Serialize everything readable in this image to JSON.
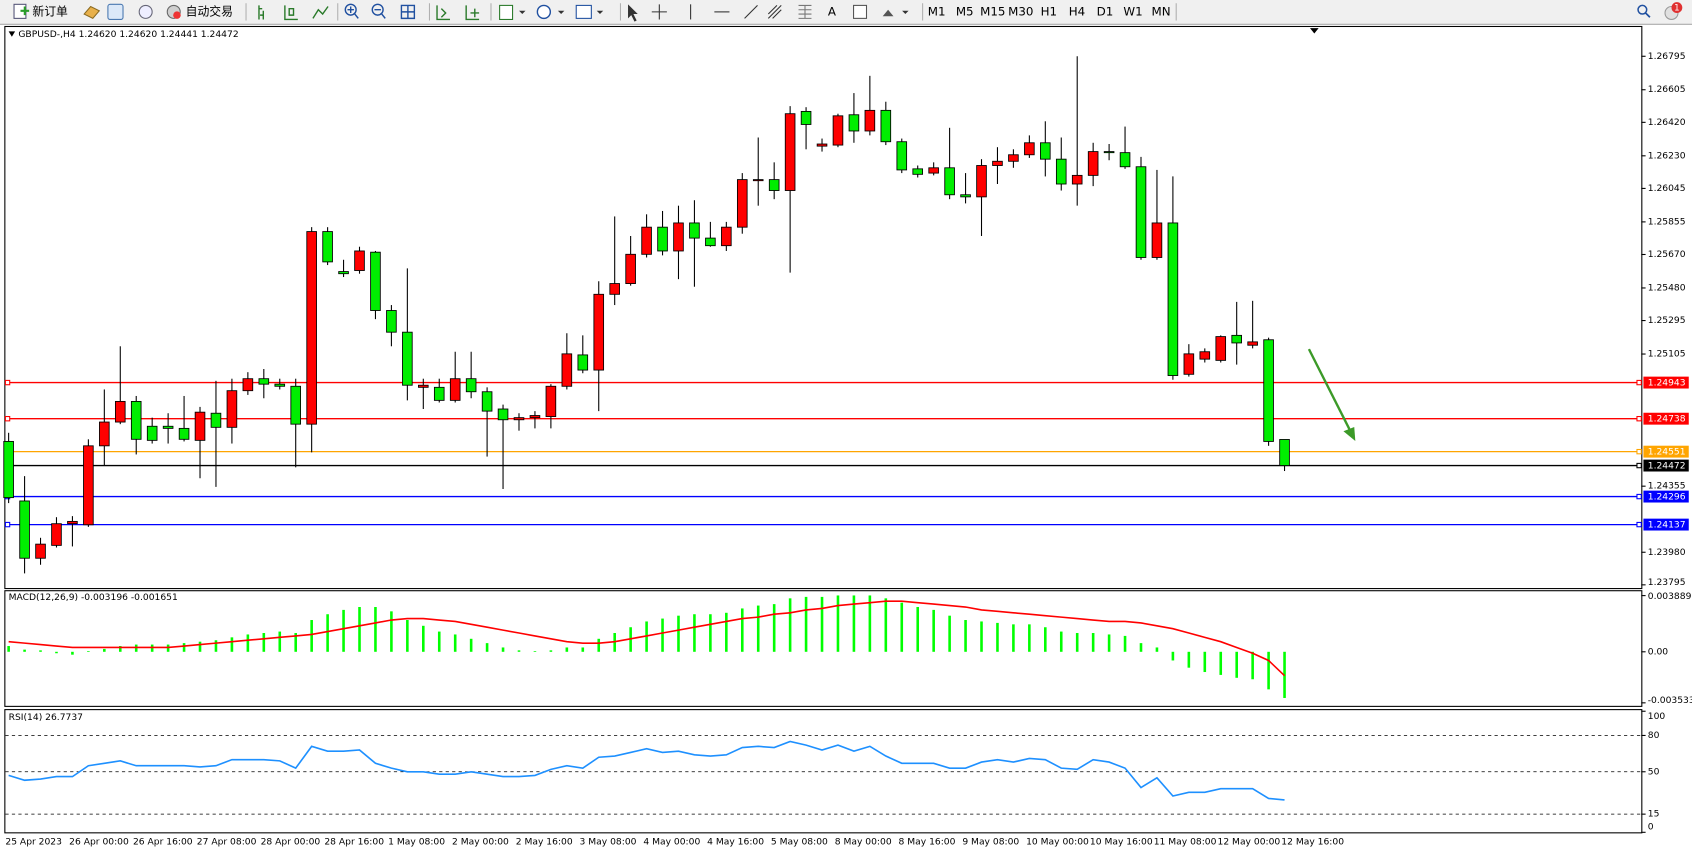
{
  "toolbar": {
    "new_order": "新订单",
    "auto_trading": "自动交易",
    "text_tool": "A",
    "notifications": "1",
    "timeframes": [
      "M1",
      "M5",
      "M15",
      "M30",
      "H1",
      "H4",
      "D1",
      "W1",
      "MN"
    ]
  },
  "chart_data": [
    {
      "type": "candlestick",
      "title": "GBPUSD-,H4  1.24620 1.24620 1.24441 1.24472",
      "up_color": "#ff0000",
      "down_color": "#00ee00",
      "categories": [
        "25 Apr 2023",
        null,
        null,
        null,
        "26 Apr 00:00",
        null,
        null,
        null,
        "26 Apr 16:00",
        null,
        null,
        null,
        "27 Apr 08:00",
        null,
        null,
        null,
        "28 Apr 00:00",
        null,
        null,
        null,
        "28 Apr 16:00",
        null,
        null,
        null,
        "1 May 08:00",
        null,
        null,
        null,
        "2 May 00:00",
        null,
        null,
        null,
        "2 May 16:00",
        null,
        null,
        null,
        "3 May 08:00",
        null,
        null,
        null,
        "4 May 00:00",
        null,
        null,
        null,
        "4 May 16:00",
        null,
        null,
        null,
        "5 May 08:00",
        null,
        null,
        null,
        "8 May 00:00",
        null,
        null,
        null,
        "8 May 16:00",
        null,
        null,
        null,
        "9 May 08:00",
        null,
        null,
        null,
        "10 May 00:00",
        null,
        null,
        null,
        "10 May 16:00",
        null,
        null,
        null,
        "11 May 08:00",
        null,
        null,
        null,
        "12 May 00:00",
        null,
        null,
        null,
        "12 May 16:00"
      ],
      "open": [
        1.24609,
        1.24271,
        1.23946,
        1.24019,
        1.24142,
        1.24136,
        1.24584,
        1.24719,
        1.24836,
        1.24695,
        1.24695,
        1.24683,
        1.24615,
        1.24769,
        1.24689,
        1.24897,
        1.24965,
        1.24934,
        1.24922,
        1.24707,
        1.258,
        1.25573,
        1.25579,
        1.25683,
        1.25352,
        1.25229,
        1.24916,
        1.24916,
        1.24842,
        1.24965,
        1.24891,
        1.24793,
        1.24732,
        1.24744,
        1.2475,
        1.24922,
        1.251,
        1.25014,
        1.25444,
        1.25505,
        1.25671,
        1.25825,
        1.2569,
        1.25849,
        1.25763,
        1.2572,
        1.25825,
        1.26095,
        1.26095,
        1.26033,
        1.26482,
        1.26285,
        1.26291,
        1.26463,
        1.26371,
        1.26488,
        1.2631,
        1.26156,
        1.26132,
        1.26162,
        1.26009,
        1.25997,
        1.26175,
        1.26199,
        1.26236,
        1.26304,
        1.26211,
        1.2607,
        1.26119,
        1.26254,
        1.26248,
        1.26168,
        1.25653,
        1.25849,
        1.2499,
        1.25076,
        1.25069,
        1.25211,
        1.25155,
        1.25186,
        1.2462
      ],
      "high": [
        1.24658,
        1.24412,
        1.24062,
        1.24179,
        1.24185,
        1.24621,
        1.24904,
        1.25149,
        1.24867,
        1.24744,
        1.24769,
        1.24867,
        1.24805,
        1.24953,
        1.24965,
        1.25002,
        1.2502,
        1.24965,
        1.24965,
        1.25825,
        1.25825,
        1.2564,
        1.25714,
        1.2569,
        1.25383,
        1.25591,
        1.24965,
        1.24965,
        1.25118,
        1.25118,
        1.24916,
        1.24818,
        1.24769,
        1.24781,
        1.24934,
        1.25223,
        1.25211,
        1.25518,
        1.25886,
        1.25775,
        1.25898,
        1.25917,
        1.25947,
        1.25978,
        1.25855,
        1.25855,
        1.26132,
        1.26334,
        1.26193,
        1.26512,
        1.26506,
        1.26328,
        1.26469,
        1.26586,
        1.26684,
        1.26537,
        1.26328,
        1.26175,
        1.26193,
        1.26389,
        1.26132,
        1.26211,
        1.26279,
        1.26267,
        1.26346,
        1.26426,
        1.26334,
        1.26795,
        1.26304,
        1.26297,
        1.26396,
        1.26224,
        1.2615,
        1.26113,
        1.25161,
        1.25137,
        1.25211,
        1.25401,
        1.25407,
        1.25198,
        1.2462
      ],
      "low": [
        1.24259,
        1.2386,
        1.23909,
        1.24007,
        1.24013,
        1.24124,
        1.24474,
        1.24707,
        1.24535,
        1.24597,
        1.24597,
        1.24609,
        1.244,
        1.24351,
        1.24597,
        1.24873,
        1.24854,
        1.24904,
        1.24462,
        1.24547,
        1.2561,
        1.25542,
        1.25561,
        1.25303,
        1.25149,
        1.24842,
        1.24793,
        1.2483,
        1.2483,
        1.24854,
        1.24523,
        1.24339,
        1.2467,
        1.24683,
        1.24683,
        1.24904,
        1.24996,
        1.24781,
        1.25383,
        1.25493,
        1.25653,
        1.25665,
        1.2553,
        1.25487,
        1.25714,
        1.2569,
        1.25788,
        1.25947,
        1.25984,
        1.25567,
        1.26267,
        1.26254,
        1.26279,
        1.26304,
        1.26346,
        1.26291,
        1.26132,
        1.26107,
        1.26119,
        1.25984,
        1.2596,
        1.25775,
        1.2607,
        1.26162,
        1.26218,
        1.26113,
        1.26033,
        1.25947,
        1.26058,
        1.26205,
        1.26156,
        1.2564,
        1.2564,
        1.24959,
        1.24977,
        1.25057,
        1.25057,
        1.25045,
        1.25137,
        1.24584,
        1.24441
      ],
      "close": [
        1.2429,
        1.23946,
        1.24026,
        1.24142,
        1.24155,
        1.24584,
        1.24719,
        1.24836,
        1.24621,
        1.24615,
        1.24683,
        1.24621,
        1.24775,
        1.24689,
        1.24897,
        1.24965,
        1.24934,
        1.24922,
        1.24707,
        1.258,
        1.25628,
        1.25561,
        1.2569,
        1.25352,
        1.25229,
        1.24928,
        1.24928,
        1.24842,
        1.24965,
        1.24891,
        1.24781,
        1.24732,
        1.24744,
        1.24756,
        1.24922,
        1.25106,
        1.25014,
        1.25444,
        1.25505,
        1.25671,
        1.25825,
        1.2569,
        1.25849,
        1.25763,
        1.2572,
        1.25825,
        1.26095,
        1.26095,
        1.26033,
        1.26469,
        1.26408,
        1.26297,
        1.26457,
        1.26371,
        1.26488,
        1.2631,
        1.2615,
        1.26125,
        1.26162,
        1.26009,
        1.25997,
        1.26175,
        1.26199,
        1.26236,
        1.26304,
        1.26211,
        1.2607,
        1.26119,
        1.26254,
        1.26248,
        1.26168,
        1.25653,
        1.25849,
        1.24983,
        1.25106,
        1.25118,
        1.25204,
        1.25168,
        1.25174,
        1.24609,
        1.24472
      ],
      "ylim": [
        1.23777,
        1.26961
      ],
      "yticks": [
        {
          "value": 1.26795,
          "label": "1.26795"
        },
        {
          "value": 1.26605,
          "label": "1.26605"
        },
        {
          "value": 1.2642,
          "label": "1.26420"
        },
        {
          "value": 1.2623,
          "label": "1.26230"
        },
        {
          "value": 1.26045,
          "label": "1.26045"
        },
        {
          "value": 1.25855,
          "label": "1.25855"
        },
        {
          "value": 1.2567,
          "label": "1.25670"
        },
        {
          "value": 1.2548,
          "label": "1.25480"
        },
        {
          "value": 1.25295,
          "label": "1.25295"
        },
        {
          "value": 1.25105,
          "label": "1.25105"
        },
        {
          "value": 1.24355,
          "label": "1.24355"
        },
        {
          "value": 1.2398,
          "label": "1.23980"
        },
        {
          "value": 1.23795,
          "label": "1.23795"
        }
      ],
      "levels": [
        {
          "value": 1.24943,
          "label": "1.24943",
          "color": "#ff0000"
        },
        {
          "value": 1.24738,
          "label": "1.24738",
          "color": "#ff0000"
        },
        {
          "value": 1.24551,
          "label": "1.24551",
          "color": "#ffa500"
        },
        {
          "value": 1.24472,
          "label": "1.24472",
          "color": "#000000"
        },
        {
          "value": 1.24296,
          "label": "1.24296",
          "color": "#0000ff"
        },
        {
          "value": 1.24137,
          "label": "1.24137",
          "color": "#0000ff"
        }
      ]
    },
    {
      "type": "macd",
      "title": "MACD(12,26,9) -0.003196 -0.001651",
      "histogram_color": "#00ff00",
      "signal_color": "#ff0000",
      "histogram": [
        0.0004,
        0.00015,
        0.0001,
        -0.0001,
        -0.0002,
        5e-05,
        0.0002,
        0.0004,
        0.0005,
        0.0005,
        0.0005,
        0.0006,
        0.0007,
        0.0008,
        0.001,
        0.0012,
        0.0013,
        0.0014,
        0.0013,
        0.0022,
        0.0026,
        0.0029,
        0.0031,
        0.0031,
        0.0028,
        0.0022,
        0.0018,
        0.0014,
        0.0012,
        0.0009,
        0.0006,
        0.0003,
        0.0001,
        5e-05,
        0.0001,
        0.0003,
        0.0003,
        0.0009,
        0.0013,
        0.0017,
        0.0021,
        0.0023,
        0.0025,
        0.0026,
        0.0026,
        0.0027,
        0.003,
        0.0032,
        0.0033,
        0.0037,
        0.0038,
        0.0038,
        0.0039,
        0.0039,
        0.0039,
        0.0037,
        0.0034,
        0.0031,
        0.0029,
        0.0025,
        0.0022,
        0.0021,
        0.002,
        0.0019,
        0.0019,
        0.0017,
        0.0014,
        0.0013,
        0.0013,
        0.0012,
        0.0011,
        0.0006,
        0.0003,
        -0.0006,
        -0.0011,
        -0.0014,
        -0.0016,
        -0.0018,
        -0.0019,
        -0.0026,
        -0.003196
      ],
      "signal": [
        0.0007,
        0.0006,
        0.0005,
        0.0004,
        0.0003,
        0.0003,
        0.0003,
        0.0003,
        0.0003,
        0.0003,
        0.0003,
        0.0004,
        0.0005,
        0.0006,
        0.0007,
        0.0008,
        0.0009,
        0.001,
        0.0011,
        0.0012,
        0.0014,
        0.0016,
        0.0018,
        0.002,
        0.0022,
        0.0023,
        0.0023,
        0.0022,
        0.0021,
        0.0019,
        0.0017,
        0.0015,
        0.0013,
        0.0011,
        0.0009,
        0.0007,
        0.0006,
        0.0006,
        0.0007,
        0.0009,
        0.0011,
        0.0013,
        0.0015,
        0.0017,
        0.0019,
        0.0021,
        0.0023,
        0.0024,
        0.0026,
        0.0027,
        0.0029,
        0.003,
        0.0032,
        0.0033,
        0.0034,
        0.0035,
        0.0035,
        0.0034,
        0.0033,
        0.0032,
        0.0031,
        0.0029,
        0.0028,
        0.0027,
        0.0026,
        0.0025,
        0.0024,
        0.0023,
        0.0022,
        0.0021,
        0.0021,
        0.002,
        0.0018,
        0.0016,
        0.0013,
        0.001,
        0.0007,
        0.0003,
        -0.0001,
        -0.0006,
        -0.001651
      ],
      "ylim": [
        -0.00374,
        0.00419
      ],
      "yticks": [
        {
          "value": 0.003889,
          "label": "0.003889"
        },
        {
          "value": 0,
          "label": "0.00"
        },
        {
          "value": -0.003533,
          "label": "-0.003533"
        }
      ]
    },
    {
      "type": "line",
      "title": "RSI(14) 26.7737",
      "color": "#1e90ff",
      "values": [
        47,
        43,
        44,
        46,
        46,
        55,
        57,
        59,
        55,
        55,
        55,
        55,
        54,
        55,
        60,
        60,
        60,
        59,
        53,
        71,
        67,
        67,
        68,
        57,
        53,
        50,
        50,
        48,
        48,
        50,
        48,
        46,
        46,
        47,
        52,
        55,
        53,
        62,
        63,
        66,
        69,
        66,
        67,
        64,
        63,
        64,
        70,
        71,
        70,
        75,
        72,
        68,
        72,
        67,
        71,
        63,
        57,
        57,
        57,
        53,
        53,
        58,
        60,
        58,
        61,
        60,
        53,
        52,
        60,
        58,
        53,
        37,
        45,
        30,
        33,
        33,
        36,
        36,
        36,
        28,
        26.7737
      ],
      "ylim": [
        0,
        100
      ],
      "yticks": [
        100,
        80,
        50,
        15,
        0
      ],
      "levels": [
        80,
        50,
        15
      ]
    }
  ]
}
